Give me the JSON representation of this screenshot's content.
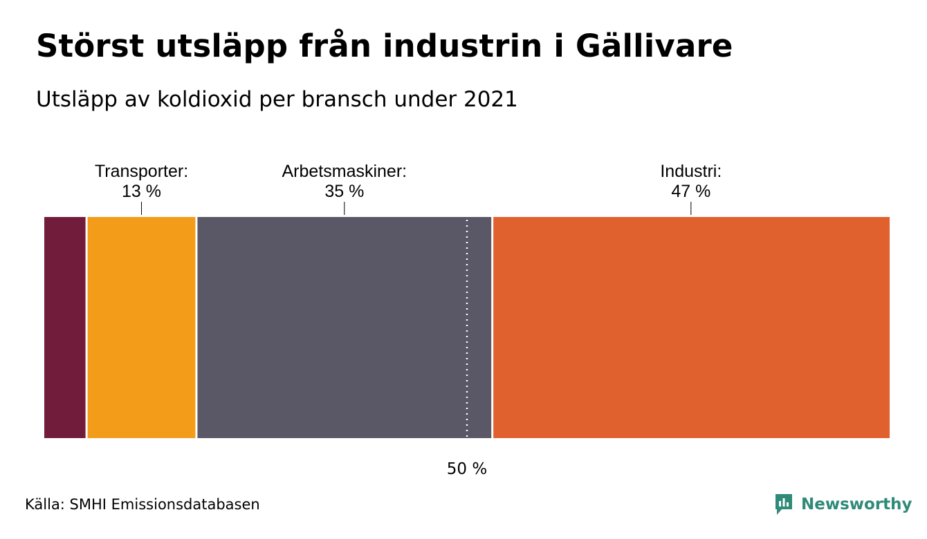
{
  "title": "Störst utsläpp från industrin i Gällivare",
  "subtitle": "Utsläpp av koldioxid per bransch under 2021",
  "source": "Källa: SMHI Emissionsdatabasen",
  "logo_text": "Newsworthy",
  "chart_data": {
    "type": "bar",
    "stacked": true,
    "orientation": "horizontal",
    "unit": "%",
    "segments": [
      {
        "name": "",
        "value": 5,
        "color": "#721c3b"
      },
      {
        "name": "Transporter",
        "value": 13,
        "label": "Transporter:",
        "value_label": "13 %",
        "color": "#f39c1a"
      },
      {
        "name": "Arbetsmaskiner",
        "value": 35,
        "label": "Arbetsmaskiner:",
        "value_label": "35 %",
        "color": "#5a5766"
      },
      {
        "name": "Industri",
        "value": 47,
        "label": "Industri:",
        "value_label": "47 %",
        "color": "#e0602e"
      }
    ],
    "total": 100,
    "reference_line": {
      "value": 50,
      "label": "50 %"
    }
  }
}
